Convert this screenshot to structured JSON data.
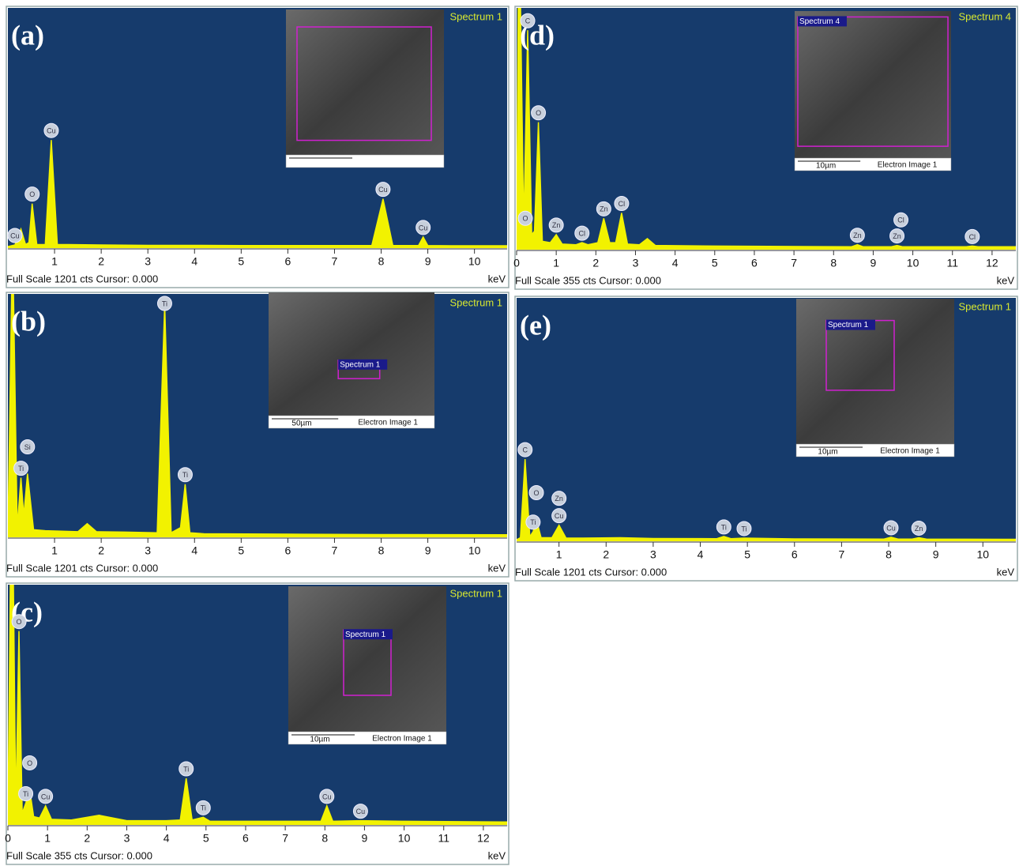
{
  "chart_data": [
    {
      "type": "line",
      "panel_label": "(a)",
      "title": "Spectrum 1",
      "x": [
        0,
        0.15,
        0.28,
        0.38,
        0.45,
        0.52,
        0.62,
        0.8,
        0.93,
        1.06,
        1.3,
        2,
        3,
        4,
        5,
        6,
        7,
        7.8,
        8.04,
        8.25,
        8.8,
        8.9,
        9.0,
        9.5,
        10.7
      ],
      "values": [
        0,
        8,
        88,
        10,
        20,
        216,
        10,
        10,
        536,
        10,
        10,
        8,
        6,
        6,
        5,
        5,
        5,
        5,
        240,
        5,
        5,
        48,
        5,
        4,
        4
      ],
      "xlim": [
        0,
        10.7
      ],
      "xticks": [
        1,
        2,
        3,
        4,
        5,
        6,
        7,
        8,
        9,
        10
      ],
      "ylim": [
        0,
        1201
      ],
      "status": "Full Scale 1201 cts Cursor: 0.000",
      "x_unit": "keV",
      "color": "#f2f200",
      "peaks": {
        "labels": [
          "Cu",
          "O",
          "Cu",
          "Cu",
          "Cu"
        ],
        "x": [
          0.15,
          0.52,
          0.93,
          8.04,
          8.9
        ]
      }
    },
    {
      "type": "line",
      "panel_label": "(b)",
      "title": "Spectrum 1",
      "x": [
        0,
        0.08,
        0.12,
        0.2,
        0.28,
        0.34,
        0.42,
        0.55,
        0.8,
        1.5,
        1.7,
        1.9,
        2.5,
        3.2,
        3.36,
        3.5,
        3.7,
        3.8,
        3.9,
        4.2,
        6,
        8,
        10.7
      ],
      "values": [
        0,
        1201,
        1201,
        40,
        288,
        100,
        308,
        30,
        25,
        20,
        60,
        20,
        18,
        15,
        1149,
        15,
        40,
        256,
        15,
        10,
        8,
        6,
        5
      ],
      "xlim": [
        0,
        10.7
      ],
      "xticks": [
        1,
        2,
        3,
        4,
        5,
        6,
        7,
        8,
        9,
        10
      ],
      "ylim": [
        0,
        1201
      ],
      "status": "Full Scale 1201 cts Cursor: 0.000",
      "x_unit": "keV",
      "color": "#f2f200",
      "peaks": {
        "labels": [
          "Ti",
          "Si",
          "Ti",
          "Ti"
        ],
        "x": [
          0.28,
          0.42,
          3.36,
          3.8
        ]
      },
      "inset": {
        "region_label": "Spectrum 1",
        "scale_bar": "50µm",
        "caption": "Electron Image 1"
      }
    },
    {
      "type": "line",
      "panel_label": "(c)",
      "title": "Spectrum 1",
      "x": [
        0,
        0.06,
        0.14,
        0.2,
        0.28,
        0.36,
        0.45,
        0.55,
        0.65,
        0.8,
        0.95,
        1.1,
        1.6,
        2.3,
        3,
        4,
        4.35,
        4.5,
        4.65,
        4.93,
        5.1,
        6,
        7.9,
        8.05,
        8.2,
        8.9,
        10,
        12.6
      ],
      "values": [
        0,
        355,
        355,
        20,
        286,
        15,
        30,
        50,
        10,
        8,
        26,
        6,
        5,
        12,
        4,
        4,
        5,
        67,
        5,
        9,
        3,
        3,
        3,
        26,
        3,
        4,
        3,
        2
      ],
      "xlim": [
        0,
        12.6
      ],
      "xticks": [
        0,
        1,
        2,
        3,
        4,
        5,
        6,
        7,
        8,
        9,
        10,
        11,
        12
      ],
      "ylim": [
        0,
        355
      ],
      "status": "Full Scale 355 cts Cursor: 0.000",
      "x_unit": "keV",
      "color": "#f2f200",
      "peaks": {
        "labels": [
          "O",
          "Ti",
          "O",
          "Cu",
          "Ti",
          "Ti",
          "Cu",
          "Cu"
        ],
        "x": [
          0.28,
          0.45,
          0.55,
          0.95,
          4.5,
          4.93,
          8.05,
          8.9
        ]
      },
      "inset": {
        "region_label": "Spectrum 1",
        "scale_bar": "10µm",
        "caption": "Electron Image 1"
      }
    },
    {
      "type": "line",
      "panel_label": "(d)",
      "title": "Spectrum 4",
      "x": [
        0,
        0.04,
        0.1,
        0.18,
        0.28,
        0.38,
        0.45,
        0.55,
        0.65,
        0.85,
        1.0,
        1.15,
        1.5,
        1.65,
        1.8,
        2.05,
        2.2,
        2.35,
        2.5,
        2.65,
        2.8,
        3.1,
        3.3,
        3.5,
        5,
        8.45,
        8.6,
        8.75,
        9.45,
        9.6,
        9.75,
        11.35,
        11.5,
        11.65,
        12.6
      ],
      "values": [
        0,
        355,
        355,
        30,
        322,
        20,
        25,
        186,
        10,
        8,
        20,
        6,
        5,
        8,
        5,
        8,
        44,
        8,
        8,
        52,
        6,
        5,
        14,
        4,
        3,
        2,
        5,
        2,
        2,
        4,
        2,
        2,
        3,
        2,
        2
      ],
      "xlim": [
        0,
        12.6
      ],
      "xticks": [
        0,
        1,
        2,
        3,
        4,
        5,
        6,
        7,
        8,
        9,
        10,
        11,
        12
      ],
      "ylim": [
        0,
        355
      ],
      "status": "Full Scale 355 cts Cursor: 0.000",
      "x_unit": "keV",
      "color": "#f2f200",
      "peaks": {
        "labels": [
          "O",
          "C",
          "O",
          "Zn",
          "Cl",
          "Zn",
          "Cl",
          "Zn",
          "Zn",
          "Cl",
          "Cl"
        ],
        "x": [
          0.22,
          0.28,
          0.55,
          1.0,
          1.65,
          2.2,
          2.65,
          8.6,
          9.6,
          9.7,
          11.5
        ]
      },
      "inset": {
        "region_label": "Spectrum 4",
        "scale_bar": "10µm",
        "caption": "Electron Image 1"
      }
    },
    {
      "type": "line",
      "panel_label": "(e)",
      "title": "Spectrum 1",
      "x": [
        0.1,
        0.18,
        0.28,
        0.38,
        0.45,
        0.52,
        0.62,
        0.85,
        1.0,
        1.15,
        1.5,
        2.3,
        3,
        4.35,
        4.5,
        4.65,
        4.93,
        6,
        7.9,
        8.05,
        8.2,
        8.5,
        8.64,
        8.8,
        10.7
      ],
      "values": [
        0,
        10,
        400,
        15,
        40,
        100,
        10,
        10,
        72,
        8,
        8,
        10,
        6,
        5,
        16,
        5,
        8,
        4,
        3,
        12,
        3,
        3,
        10,
        3,
        2
      ],
      "xlim": [
        0.1,
        10.7
      ],
      "xticks": [
        1,
        2,
        3,
        4,
        5,
        6,
        7,
        8,
        9,
        10
      ],
      "ylim": [
        0,
        1201
      ],
      "status": "Full Scale 1201 cts Cursor: 0.000",
      "x_unit": "keV",
      "color": "#f2f200",
      "peaks": {
        "labels": [
          "C",
          "Ti",
          "O",
          "Cu",
          "Zn",
          "Ti",
          "Ti",
          "Cu",
          "Zn"
        ],
        "x": [
          0.28,
          0.45,
          0.52,
          1.0,
          1.0,
          4.5,
          4.93,
          8.05,
          8.64
        ]
      },
      "inset": {
        "region_label": "Spectrum 1",
        "scale_bar": "10µm",
        "caption": "Electron Image 1"
      }
    }
  ]
}
